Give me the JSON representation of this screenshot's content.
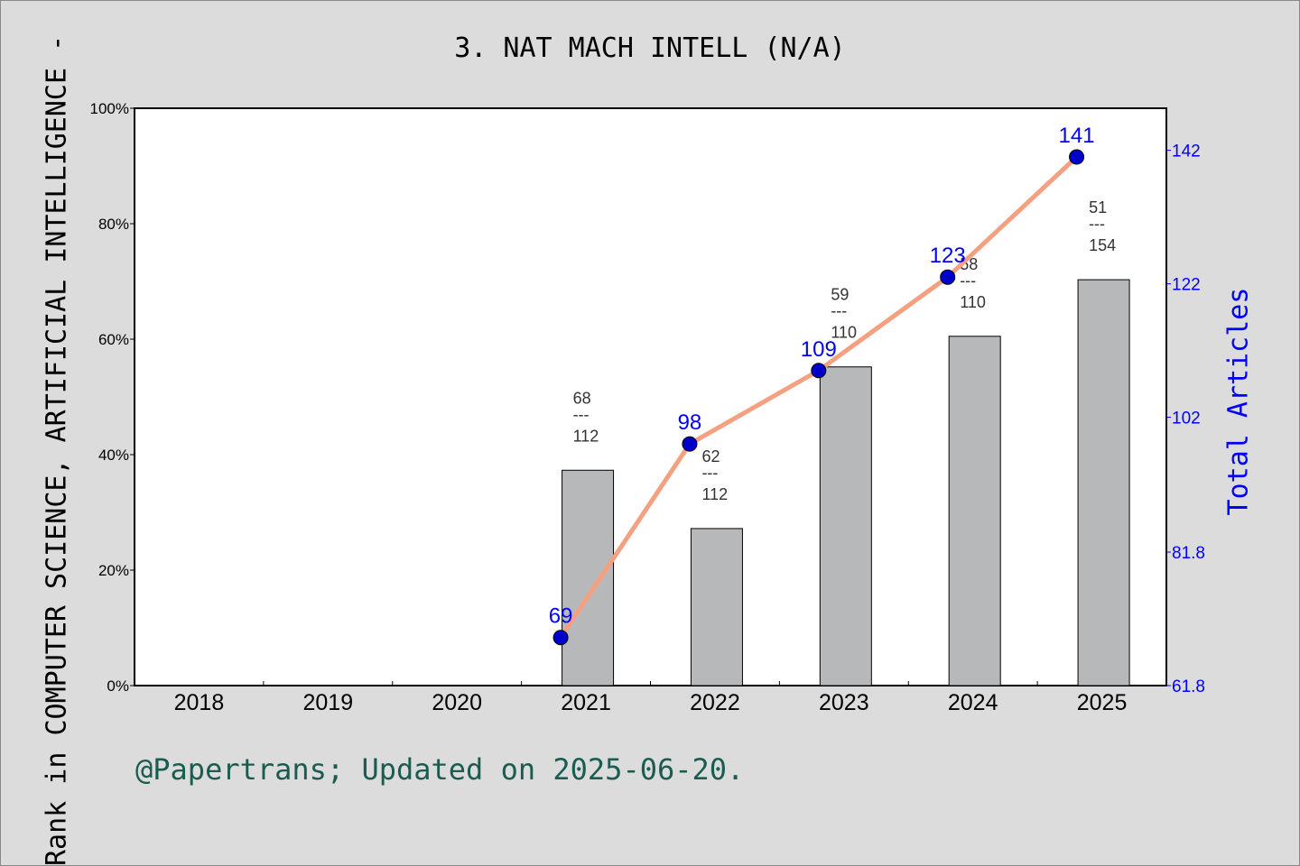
{
  "chart_data": {
    "type": "bar+line",
    "title": "3. NAT MACH INTELL (N/A)",
    "ylabel": "Rank in COMPUTER SCIENCE, ARTIFICIAL INTELLIGENCE -",
    "y2label": "Total Articles",
    "categories": [
      "2018",
      "2019",
      "2020",
      "2021",
      "2022",
      "2023",
      "2024",
      "2025"
    ],
    "ylim": [
      0,
      100
    ],
    "y_ticks": [
      "0%",
      "20%",
      "40%",
      "60%",
      "80%",
      "100%"
    ],
    "y2lim": [
      61.8,
      148.3
    ],
    "y2_ticks": [
      "61.8",
      "81.8",
      "102",
      "122",
      "142"
    ],
    "bars": {
      "values_percent": [
        null,
        null,
        null,
        37.3,
        27.2,
        55.2,
        60.5,
        70.3
      ],
      "labels_top": [
        null,
        null,
        null,
        "68",
        "62",
        "59",
        "58",
        "51"
      ],
      "labels_bottom": [
        null,
        null,
        null,
        "112",
        "112",
        "110",
        "110",
        "154"
      ],
      "color": "#b7b8b9"
    },
    "line": {
      "values": [
        null,
        null,
        null,
        69,
        98,
        109,
        123,
        141
      ],
      "color": "#f5a080",
      "marker_color": "#0000cc",
      "label_color": "#0000ff"
    },
    "grid": false
  },
  "footer": "@Papertrans; Updated on 2025-06-20."
}
